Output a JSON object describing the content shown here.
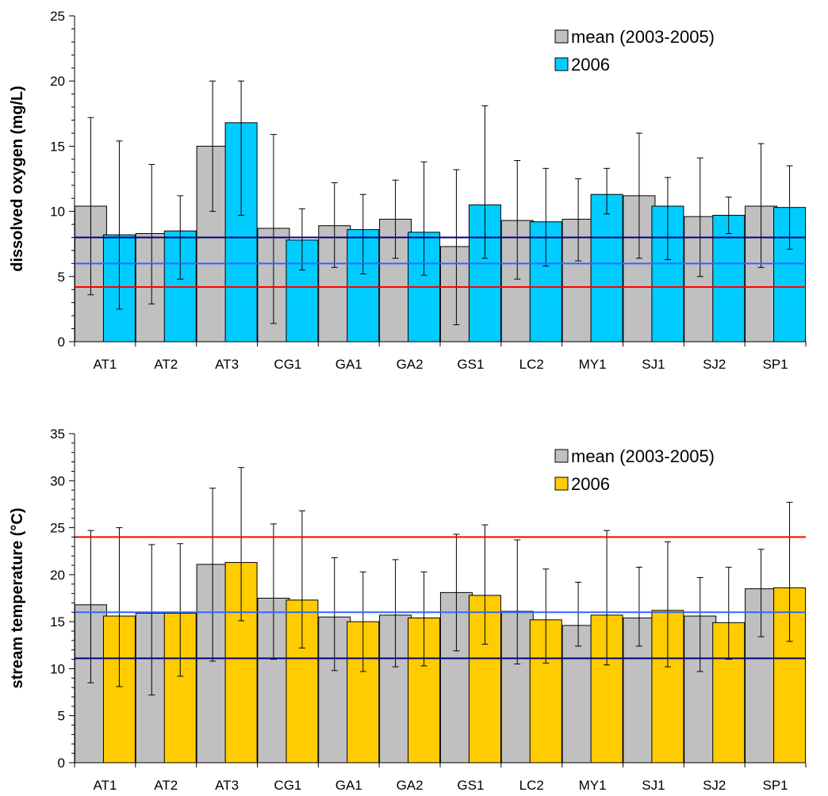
{
  "chart_data": [
    {
      "type": "bar",
      "title": "",
      "ylabel": "dissolved oxygen (mg/L)",
      "xlabel": "",
      "ylim": [
        0,
        25
      ],
      "ytick_step": 5,
      "categories": [
        "AT1",
        "AT2",
        "AT3",
        "CG1",
        "GA1",
        "GA2",
        "GS1",
        "LC2",
        "MY1",
        "SJ1",
        "SJ2",
        "SP1"
      ],
      "series": [
        {
          "name": "mean (2003-2005)",
          "color": "#c0c0c0",
          "values": [
            10.4,
            8.3,
            15.0,
            8.7,
            8.9,
            9.4,
            7.3,
            9.3,
            9.4,
            11.2,
            9.6,
            10.4
          ],
          "err_high": [
            17.2,
            13.6,
            20.0,
            15.9,
            12.2,
            12.4,
            13.2,
            13.9,
            12.5,
            16.0,
            14.1,
            15.2
          ],
          "err_low": [
            3.6,
            2.9,
            10.0,
            1.4,
            5.7,
            6.4,
            1.3,
            4.8,
            6.2,
            6.4,
            5.0,
            5.7
          ]
        },
        {
          "name": "2006",
          "color": "#00ccff",
          "values": [
            8.2,
            8.5,
            16.8,
            7.8,
            8.6,
            8.4,
            10.5,
            9.2,
            11.3,
            10.4,
            9.7,
            10.3
          ],
          "err_high": [
            15.4,
            11.2,
            20.0,
            10.2,
            11.3,
            13.8,
            18.1,
            13.3,
            13.3,
            12.6,
            11.1,
            13.5
          ],
          "err_low": [
            2.5,
            4.8,
            9.7,
            5.5,
            5.2,
            5.1,
            6.4,
            5.8,
            9.8,
            6.3,
            8.3,
            7.1
          ]
        }
      ],
      "reference_lines": [
        {
          "value": 8.0,
          "color": "#000080"
        },
        {
          "value": 6.0,
          "color": "#3366ff"
        },
        {
          "value": 4.2,
          "color": "#ff0000"
        }
      ],
      "legend_position": "top-right",
      "grid": false
    },
    {
      "type": "bar",
      "title": "",
      "ylabel": "stream temperature (°C)",
      "xlabel": "",
      "ylim": [
        0,
        35
      ],
      "ytick_step": 5,
      "categories": [
        "AT1",
        "AT2",
        "AT3",
        "CG1",
        "GA1",
        "GA2",
        "GS1",
        "LC2",
        "MY1",
        "SJ1",
        "SJ2",
        "SP1"
      ],
      "series": [
        {
          "name": "mean (2003-2005)",
          "color": "#c0c0c0",
          "values": [
            16.8,
            15.9,
            21.1,
            17.5,
            15.5,
            15.7,
            18.1,
            16.1,
            14.6,
            15.4,
            15.6,
            18.5
          ],
          "err_high": [
            24.7,
            23.2,
            29.2,
            25.4,
            21.8,
            21.6,
            24.3,
            23.7,
            19.2,
            20.8,
            19.7,
            22.7
          ],
          "err_low": [
            8.5,
            7.2,
            10.8,
            11.0,
            9.8,
            10.2,
            11.9,
            10.5,
            12.4,
            12.4,
            9.7,
            13.4
          ]
        },
        {
          "name": "2006",
          "color": "#ffcc00",
          "values": [
            15.6,
            15.9,
            21.3,
            17.3,
            15.0,
            15.4,
            17.8,
            15.2,
            15.7,
            16.2,
            14.9,
            18.6
          ],
          "err_high": [
            25.0,
            23.3,
            31.4,
            26.8,
            20.3,
            20.3,
            25.3,
            20.6,
            24.7,
            23.5,
            20.8,
            27.7
          ],
          "err_low": [
            8.1,
            9.2,
            15.1,
            12.2,
            9.7,
            10.3,
            12.6,
            10.6,
            10.4,
            10.2,
            11.0,
            12.9
          ]
        }
      ],
      "reference_lines": [
        {
          "value": 24.0,
          "color": "#ff0000"
        },
        {
          "value": 16.0,
          "color": "#3366ff"
        },
        {
          "value": 11.1,
          "color": "#000080"
        }
      ],
      "legend_position": "top-right",
      "grid": false
    }
  ]
}
